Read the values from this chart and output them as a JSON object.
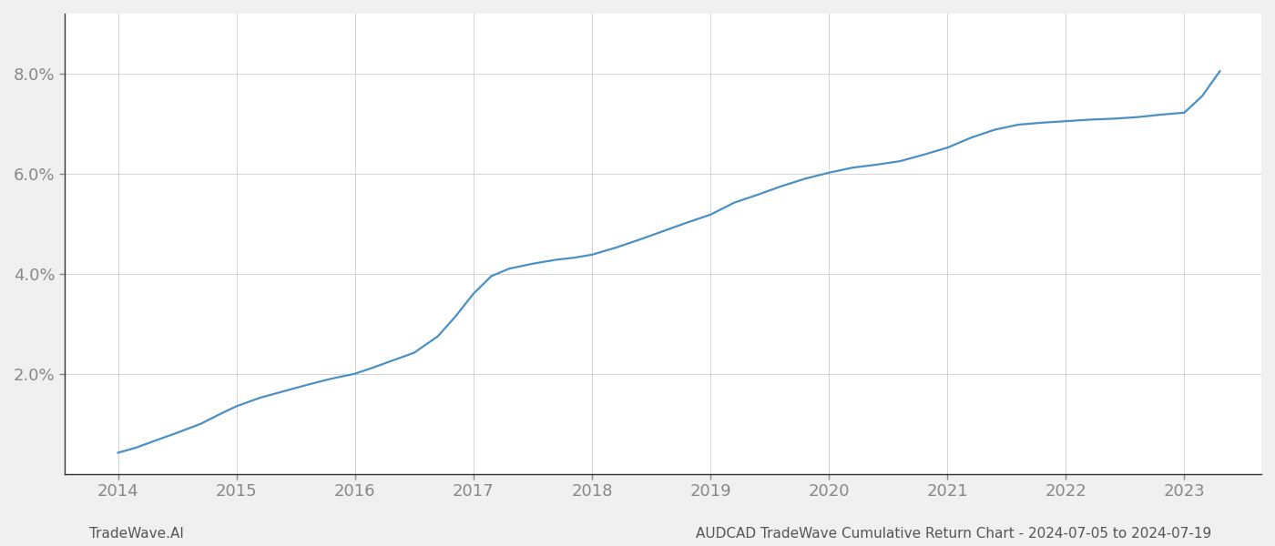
{
  "x_values": [
    2014.0,
    2014.15,
    2014.3,
    2014.5,
    2014.7,
    2014.85,
    2015.0,
    2015.2,
    2015.4,
    2015.6,
    2015.8,
    2016.0,
    2016.15,
    2016.3,
    2016.5,
    2016.7,
    2016.85,
    2017.0,
    2017.15,
    2017.3,
    2017.5,
    2017.7,
    2017.85,
    2018.0,
    2018.2,
    2018.4,
    2018.6,
    2018.8,
    2019.0,
    2019.2,
    2019.4,
    2019.6,
    2019.8,
    2020.0,
    2020.2,
    2020.4,
    2020.6,
    2020.8,
    2021.0,
    2021.2,
    2021.4,
    2021.6,
    2021.8,
    2022.0,
    2022.2,
    2022.4,
    2022.6,
    2022.8,
    2023.0,
    2023.15,
    2023.3
  ],
  "y_values": [
    0.42,
    0.52,
    0.65,
    0.82,
    1.0,
    1.18,
    1.35,
    1.52,
    1.65,
    1.78,
    1.9,
    2.0,
    2.12,
    2.25,
    2.42,
    2.75,
    3.15,
    3.6,
    3.95,
    4.1,
    4.2,
    4.28,
    4.32,
    4.38,
    4.52,
    4.68,
    4.85,
    5.02,
    5.18,
    5.42,
    5.58,
    5.75,
    5.9,
    6.02,
    6.12,
    6.18,
    6.25,
    6.38,
    6.52,
    6.72,
    6.88,
    6.98,
    7.02,
    7.05,
    7.08,
    7.1,
    7.13,
    7.18,
    7.22,
    7.55,
    8.05
  ],
  "line_color": "#4a90c4",
  "line_width": 1.6,
  "background_color": "#f0f0f0",
  "plot_background_color": "#ffffff",
  "grid_color": "#cccccc",
  "grid_linestyle": "-",
  "grid_linewidth": 0.6,
  "ytick_labels": [
    "2.0%",
    "4.0%",
    "6.0%",
    "8.0%"
  ],
  "ytick_values": [
    2.0,
    4.0,
    6.0,
    8.0
  ],
  "xtick_values": [
    2014,
    2015,
    2016,
    2017,
    2018,
    2019,
    2020,
    2021,
    2022,
    2023
  ],
  "ylim": [
    0.0,
    9.2
  ],
  "xlim": [
    2013.55,
    2023.65
  ],
  "footer_left": "TradeWave.AI",
  "footer_right": "AUDCAD TradeWave Cumulative Return Chart - 2024-07-05 to 2024-07-19",
  "tick_fontsize": 13,
  "footer_fontsize": 11,
  "axis_label_color": "#888888",
  "spine_color": "#333333"
}
